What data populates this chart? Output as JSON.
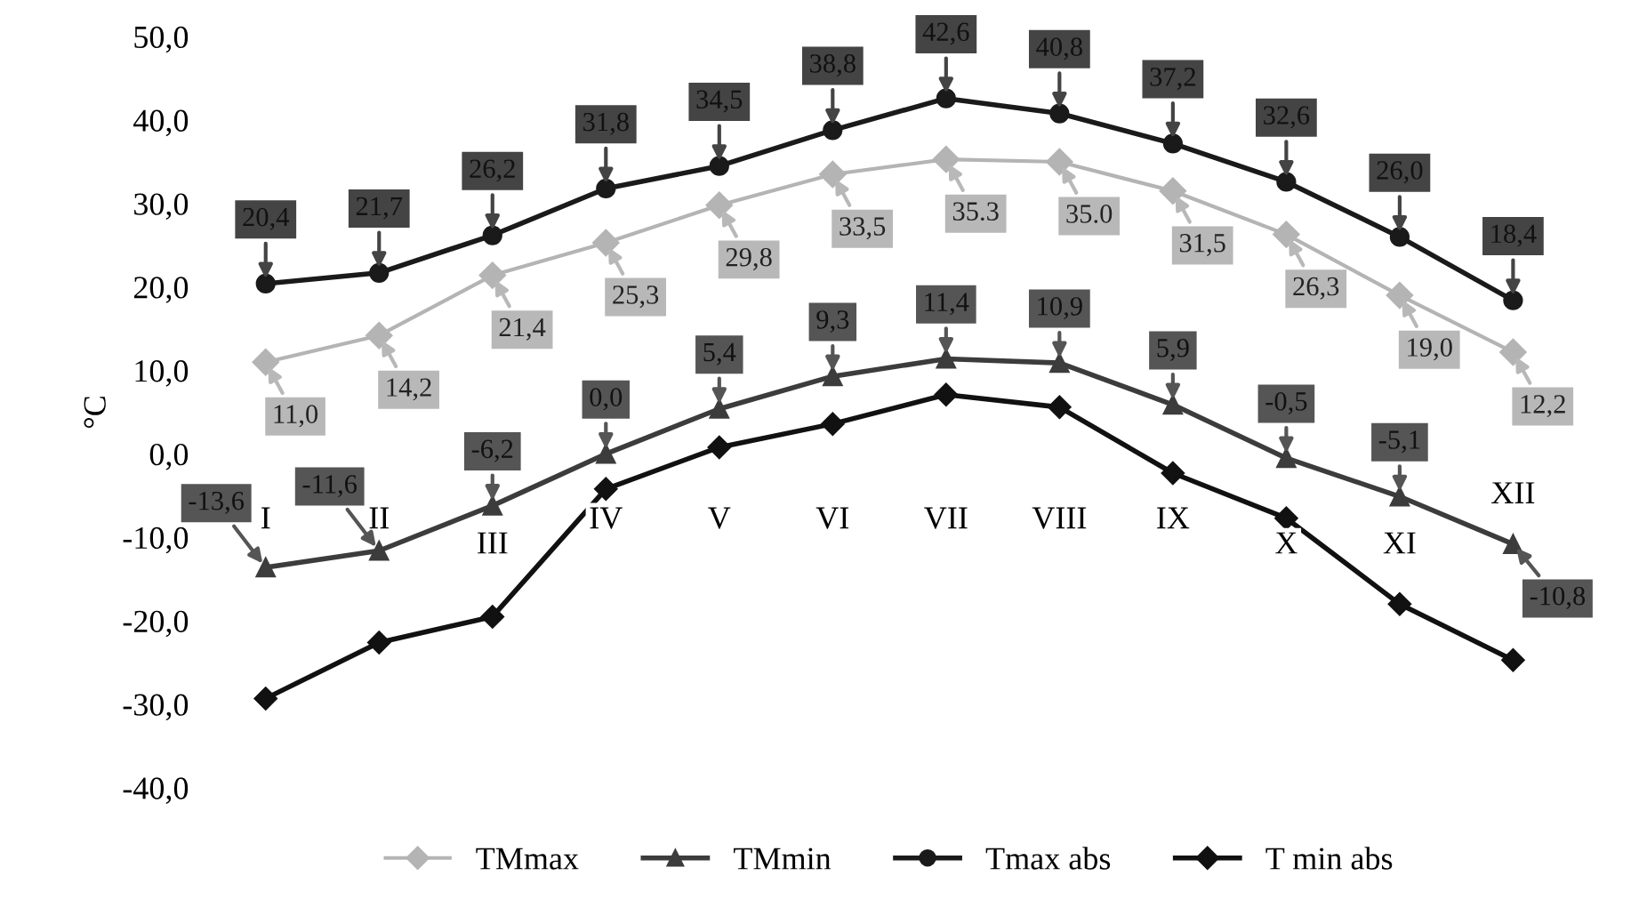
{
  "chart_data": {
    "type": "line",
    "ylabel": "°C",
    "categories": [
      "I",
      "II",
      "III",
      "IV",
      "V",
      "VI",
      "VII",
      "VIII",
      "IX",
      "X",
      "XI",
      "XII"
    ],
    "ylim": [
      -40,
      50
    ],
    "yticks": [
      {
        "value": -40,
        "label": "-40,0"
      },
      {
        "value": -30,
        "label": "-30,0"
      },
      {
        "value": -20,
        "label": "-20,0"
      },
      {
        "value": -10,
        "label": "-10,0"
      },
      {
        "value": 0,
        "label": "0,0"
      },
      {
        "value": 10,
        "label": "10,0"
      },
      {
        "value": 20,
        "label": "20,0"
      },
      {
        "value": 30,
        "label": "30,0"
      },
      {
        "value": 40,
        "label": "40,0"
      },
      {
        "value": 50,
        "label": "50,0"
      }
    ],
    "grid": false,
    "legend": "bottom",
    "series": [
      {
        "name": "TMmax",
        "color": "#b4b4b4",
        "marker": "diamond",
        "values": [
          11.0,
          14.2,
          21.4,
          25.3,
          29.8,
          33.5,
          35.3,
          35.0,
          31.5,
          26.3,
          19.0,
          12.2
        ],
        "value_labels": [
          "11,0",
          "14,2",
          "21,4",
          "25,3",
          "29,8",
          "33,5",
          "35.3",
          "35.0",
          "31,5",
          "26,3",
          "19,0",
          "12,2"
        ]
      },
      {
        "name": "TMmin",
        "color": "#3c3c3c",
        "marker": "triangle",
        "values": [
          -13.6,
          -11.6,
          -6.2,
          0.0,
          5.4,
          9.3,
          11.4,
          10.9,
          5.9,
          -0.5,
          -5.1,
          -10.8
        ],
        "value_labels": [
          "-13,6",
          "-11,6",
          "-6,2",
          "0,0",
          "5,4",
          "9,3",
          "11,4",
          "10,9",
          "5,9",
          "-0,5",
          "-5,1",
          "-10,8"
        ]
      },
      {
        "name": "Tmax abs",
        "color": "#1a1a1a",
        "marker": "circle",
        "values": [
          20.4,
          21.7,
          26.2,
          31.8,
          34.5,
          38.8,
          42.6,
          40.8,
          37.2,
          32.6,
          26.0,
          18.4
        ],
        "value_labels": [
          "20,4",
          "21,7",
          "26,2",
          "31,8",
          "34,5",
          "38,8",
          "42,6",
          "40,8",
          "37,2",
          "32,6",
          "26,0",
          "18,4"
        ]
      },
      {
        "name": "T min abs",
        "color": "#111111",
        "marker": "diamond",
        "values": [
          -29.3,
          -22.6,
          -19.5,
          -4.2,
          0.8,
          3.6,
          7.1,
          5.6,
          -2.3,
          -7.7,
          -18.0,
          -24.7
        ]
      }
    ]
  }
}
